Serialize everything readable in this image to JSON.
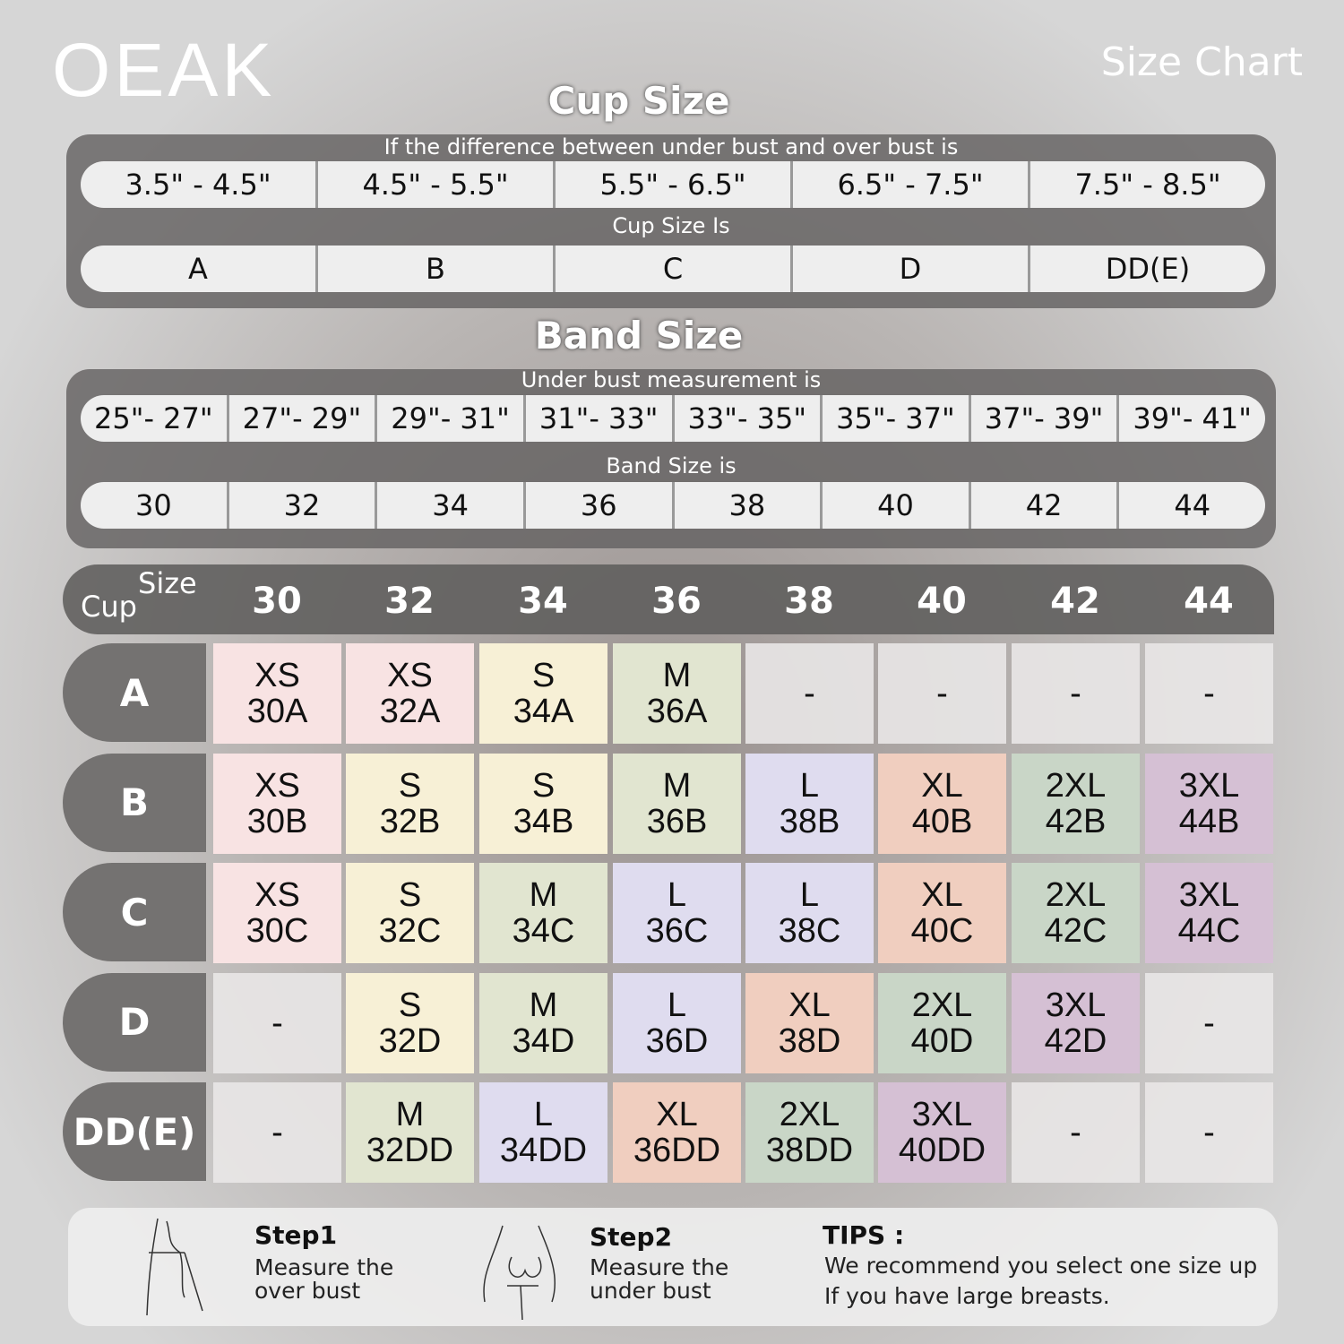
{
  "brand": "OEAK",
  "title": "Size Chart",
  "cup_section": {
    "title": "Cup Size",
    "caption1": "If the  difference between under bust and over bust is",
    "differences": [
      "3.5\" -  4.5\"",
      "4.5\" -  5.5\"",
      "5.5\" -  6.5\"",
      "6.5\" -  7.5\"",
      "7.5\" -  8.5\""
    ],
    "caption2": "Cup Size Is",
    "cups": [
      "A",
      "B",
      "C",
      "D",
      "DD(E)"
    ]
  },
  "band_section": {
    "title": "Band Size",
    "caption1": "Under bust measurement is",
    "measurements": [
      "25\"- 27\"",
      "27\"- 29\"",
      "29\"- 31\"",
      "31\"- 33\"",
      "33\"- 35\"",
      "35\"- 37\"",
      "37\"- 39\"",
      "39\"- 41\""
    ],
    "caption2": "Band Size is",
    "bands": [
      "30",
      "32",
      "34",
      "36",
      "38",
      "40",
      "42",
      "44"
    ]
  },
  "grid": {
    "cup_label": "Cup",
    "size_label": "Size",
    "columns": [
      "30",
      "32",
      "34",
      "36",
      "38",
      "40",
      "42",
      "44"
    ],
    "rows": [
      {
        "cup": "A",
        "cells": [
          [
            "XS",
            "30A"
          ],
          [
            "XS",
            "32A"
          ],
          [
            "S",
            "34A"
          ],
          [
            "M",
            "36A"
          ],
          [
            "-"
          ],
          [
            "-"
          ],
          [
            "-"
          ],
          [
            "-"
          ]
        ]
      },
      {
        "cup": "B",
        "cells": [
          [
            "XS",
            "30B"
          ],
          [
            "S",
            "32B"
          ],
          [
            "S",
            "34B"
          ],
          [
            "M",
            "36B"
          ],
          [
            "L",
            "38B"
          ],
          [
            "XL",
            "40B"
          ],
          [
            "2XL",
            "42B"
          ],
          [
            "3XL",
            "44B"
          ]
        ]
      },
      {
        "cup": "C",
        "cells": [
          [
            "XS",
            "30C"
          ],
          [
            "S",
            "32C"
          ],
          [
            "M",
            "34C"
          ],
          [
            "L",
            "36C"
          ],
          [
            "L",
            "38C"
          ],
          [
            "XL",
            "40C"
          ],
          [
            "2XL",
            "42C"
          ],
          [
            "3XL",
            "44C"
          ]
        ]
      },
      {
        "cup": "D",
        "cells": [
          [
            "-"
          ],
          [
            "S",
            "32D"
          ],
          [
            "M",
            "34D"
          ],
          [
            "L",
            "36D"
          ],
          [
            "XL",
            "38D"
          ],
          [
            "2XL",
            "40D"
          ],
          [
            "3XL",
            "42D"
          ],
          [
            "-"
          ]
        ]
      },
      {
        "cup": "DD(E)",
        "cells": [
          [
            "-"
          ],
          [
            "M",
            "32DD"
          ],
          [
            "L",
            "34DD"
          ],
          [
            "XL",
            "36DD"
          ],
          [
            "2XL",
            "38DD"
          ],
          [
            "3XL",
            "40DD"
          ],
          [
            "-"
          ],
          [
            "-"
          ]
        ]
      }
    ],
    "colors": {
      "XS": "#f8e3e3",
      "S": "#f7f0d6",
      "M": "#e1e5d0",
      "L": "#dfdcef",
      "XL": "#f0cebf",
      "2XL": "#c9d6c7",
      "3XL": "#d5c0d4",
      "-": "#e9e7e7"
    }
  },
  "steps": {
    "step1_title": "Step1",
    "step1_text1": "Measure the",
    "step1_text2": "over bust",
    "step2_title": "Step2",
    "step2_text1": "Measure the",
    "step2_text2": "under bust",
    "tips_title": "TIPS :",
    "tips_line1": "We recommend you select one size up",
    "tips_line2": "If you have large breasts."
  }
}
